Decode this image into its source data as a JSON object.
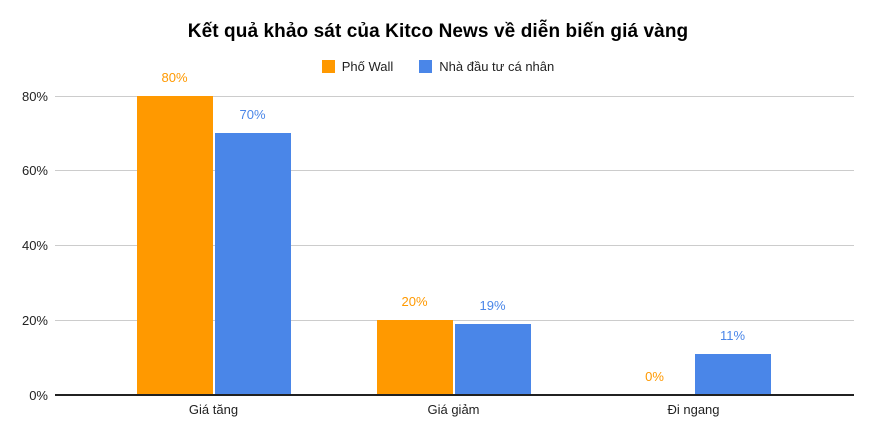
{
  "title": "Kết quả khảo sát của Kitco News về diễn biến giá vàng",
  "chart_data": {
    "type": "bar",
    "title": "Kết quả khảo sát của Kitco News về diễn biến giá vàng",
    "categories": [
      "Giá tăng",
      "Giá giảm",
      "Đi ngang"
    ],
    "series": [
      {
        "name": "Phố Wall",
        "color": "#FF9900",
        "values": [
          80,
          20,
          0
        ]
      },
      {
        "name": "Nhà đầu tư cá nhân",
        "color": "#4A86E8",
        "values": [
          70,
          19,
          11
        ]
      }
    ],
    "data_labels": [
      [
        "80%",
        "20%",
        "0%"
      ],
      [
        "70%",
        "19%",
        "11%"
      ]
    ],
    "y_axis": {
      "tick_values": [
        0,
        20,
        40,
        60,
        80
      ],
      "tick_labels": [
        "0%",
        "20%",
        "40%",
        "60%",
        "80%"
      ],
      "range": [
        0,
        80
      ]
    },
    "xlabel": "",
    "ylabel": "",
    "grid": true,
    "legend_position": "top",
    "colors": {
      "background": "#ffffff",
      "title_text": "#000000",
      "axis_text": "#222222",
      "gridline": "#cccccc",
      "baseline": "#212121"
    }
  }
}
